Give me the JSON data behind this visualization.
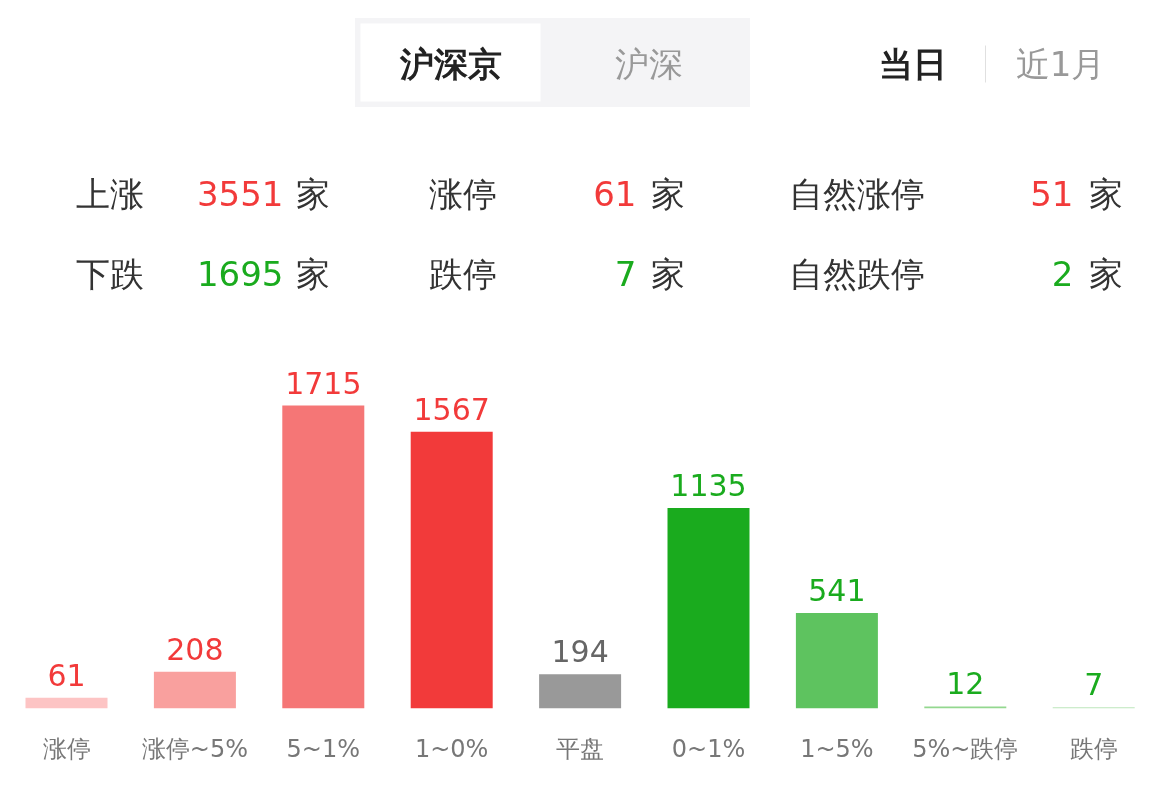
{
  "chart_data": {
    "type": "bar",
    "categories": [
      "涨停",
      "涨停~5%",
      "5~1%",
      "1~0%",
      "平盘",
      "0~1%",
      "1~5%",
      "5%~跌停",
      "跌停"
    ],
    "values": [
      61,
      208,
      1715,
      1567,
      194,
      1135,
      541,
      12,
      7
    ],
    "colors": [
      "#fdc4c4",
      "#f9a09e",
      "#f57676",
      "#f23a3a",
      "#999999",
      "#1aab1e",
      "#5ec35f",
      "#93d88f",
      "#bde6bb"
    ],
    "data_labels": true,
    "annotations": [
      "沪深京",
      "沪深",
      "当日",
      "近1月",
      "上涨",
      "3551",
      "家",
      "涨停",
      "61",
      "家",
      "自然涨停",
      "51",
      "家",
      "下跌",
      "1695",
      "家",
      "跌停",
      "7",
      "家",
      "自然跌停",
      "2",
      "家"
    ]
  }
}
